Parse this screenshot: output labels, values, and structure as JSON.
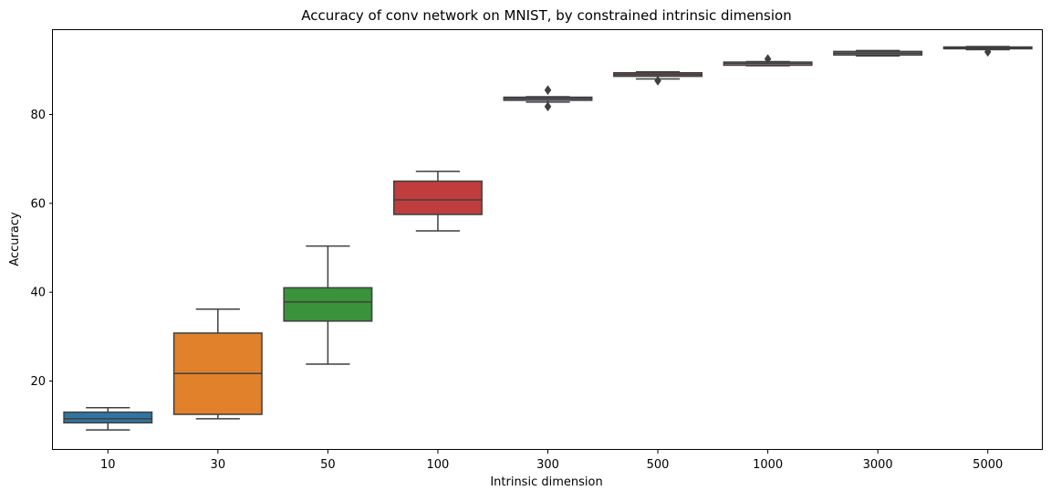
{
  "chart_data": {
    "type": "box",
    "title": "Accuracy of conv network on MNIST, by constrained intrinsic dimension",
    "xlabel": "Intrinsic dimension",
    "ylabel": "Accuracy",
    "ylim": [
      4.5,
      99
    ],
    "yticks": [
      20,
      40,
      60,
      80
    ],
    "grid": false,
    "categories": [
      "10",
      "30",
      "50",
      "100",
      "300",
      "500",
      "1000",
      "3000",
      "5000"
    ],
    "boxes": [
      {
        "category": "10",
        "color": "#3274a1",
        "whisker_low": 9.0,
        "q1": 10.6,
        "median": 11.5,
        "q3": 13.0,
        "whisker_high": 14.0,
        "outliers": []
      },
      {
        "category": "30",
        "color": "#e1812c",
        "whisker_low": 11.5,
        "q1": 12.5,
        "median": 21.7,
        "q3": 30.8,
        "whisker_high": 36.2,
        "outliers": []
      },
      {
        "category": "50",
        "color": "#3a923a",
        "whisker_low": 23.8,
        "q1": 33.5,
        "median": 37.8,
        "q3": 41.0,
        "whisker_high": 50.4,
        "outliers": []
      },
      {
        "category": "100",
        "color": "#c03d3e",
        "whisker_low": 53.8,
        "q1": 57.5,
        "median": 60.8,
        "q3": 65.0,
        "whisker_high": 67.2,
        "outliers": []
      },
      {
        "category": "300",
        "color": "#9372b2",
        "whisker_low": 82.8,
        "q1": 83.2,
        "median": 83.6,
        "q3": 83.9,
        "whisker_high": 84.0,
        "outliers": [
          85.5,
          81.8
        ]
      },
      {
        "category": "500",
        "color": "#845b53",
        "whisker_low": 88.0,
        "q1": 88.6,
        "median": 89.0,
        "q3": 89.4,
        "whisker_high": 89.6,
        "outliers": [
          87.6
        ]
      },
      {
        "category": "1000",
        "color": "#d684bd",
        "whisker_low": 91.0,
        "q1": 91.1,
        "median": 91.5,
        "q3": 91.8,
        "whisker_high": 91.9,
        "outliers": [
          92.5
        ]
      },
      {
        "category": "3000",
        "color": "#7f7f7f",
        "whisker_low": 93.2,
        "q1": 93.4,
        "median": 93.8,
        "q3": 94.2,
        "whisker_high": 94.4,
        "outliers": []
      },
      {
        "category": "5000",
        "color": "#a9aa35",
        "whisker_low": 94.6,
        "q1": 94.8,
        "median": 95.0,
        "q3": 95.2,
        "whisker_high": 95.3,
        "outliers": [
          94.1
        ]
      }
    ],
    "line_color": "#3f3f3f",
    "axis_color": "#000000"
  }
}
